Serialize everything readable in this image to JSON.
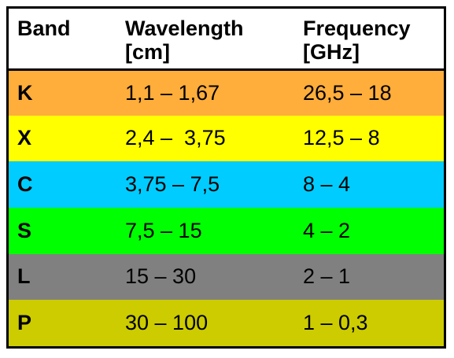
{
  "table": {
    "headers": [
      {
        "label": "Band"
      },
      {
        "label": "Wavelength\n[cm]"
      },
      {
        "label": "Frequency\n[GHz]"
      }
    ],
    "rows": [
      {
        "band": "K",
        "wavelength": "1,1 – 1,67",
        "frequency": "26,5 – 18",
        "color": "#ffad3b"
      },
      {
        "band": "X",
        "wavelength": "2,4 –  3,75",
        "frequency": "12,5 – 8",
        "color": "#ffff00"
      },
      {
        "band": "C",
        "wavelength": "3,75 – 7,5",
        "frequency": "8 – 4",
        "color": "#00ccff"
      },
      {
        "band": "S",
        "wavelength": "7,5 – 15",
        "frequency": "4 – 2",
        "color": "#00ff00"
      },
      {
        "band": "L",
        "wavelength": "15 – 30",
        "frequency": "2 – 1",
        "color": "#808080"
      },
      {
        "band": "P",
        "wavelength": "30 – 100",
        "frequency": "1 – 0,3",
        "color": "#cccc00"
      }
    ]
  }
}
